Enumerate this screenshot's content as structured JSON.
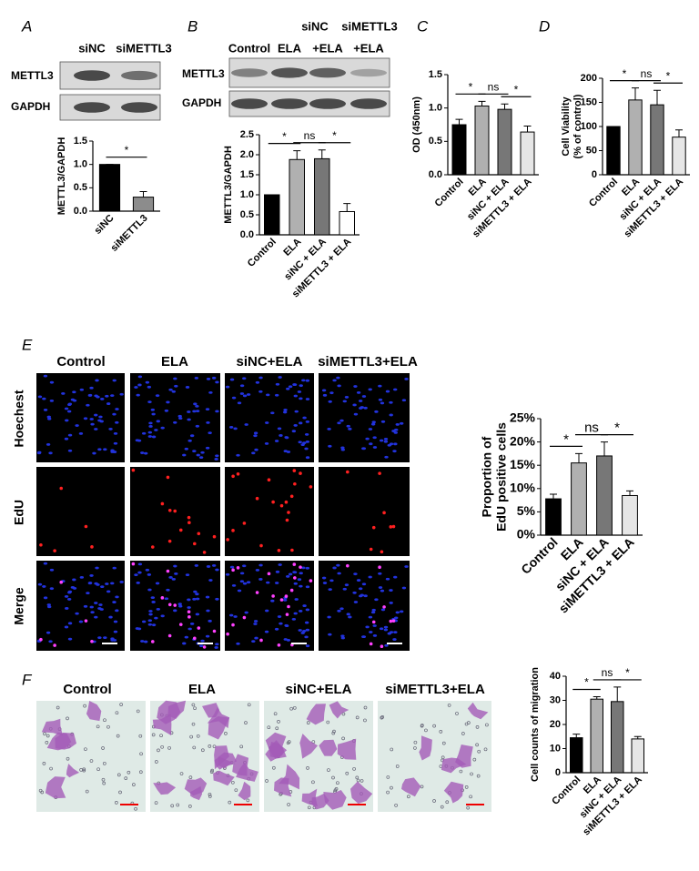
{
  "figure": {
    "panel_labels": [
      "A",
      "B",
      "C",
      "D",
      "E",
      "F"
    ],
    "blot_a": {
      "lanes": [
        "siNC",
        "siMETTL3"
      ],
      "rows": [
        "METTL3",
        "GAPDH"
      ]
    },
    "blot_b": {
      "header": [
        "siNC",
        "siMETTL3"
      ],
      "lanes": [
        "Control",
        "ELA",
        "+ELA",
        "+ELA"
      ],
      "rows": [
        "METTL3",
        "GAPDH"
      ]
    },
    "edu": {
      "columns": [
        "Control",
        "ELA",
        "siNC+ELA",
        "siMETTL3+ELA"
      ],
      "rows": [
        "Hoechest",
        "EdU",
        "Merge"
      ]
    },
    "migration": {
      "columns": [
        "Control",
        "ELA",
        "siNC+ELA",
        "siMETTL3+ELA"
      ]
    }
  },
  "chart_data": [
    {
      "type": "bar",
      "ylabel": [
        "METTL3/GAPDH"
      ],
      "categories": [
        "siNC",
        "siMETTL3"
      ],
      "values": [
        1.0,
        0.3
      ],
      "errors": [
        0,
        0.12
      ],
      "colors": [
        "#000000",
        "#8c8c8c"
      ],
      "ylim": [
        0,
        1.5
      ],
      "yticks": [
        {
          "value": 0,
          "label": "0.0"
        },
        {
          "value": 0.5,
          "label": "0.5"
        },
        {
          "value": 1,
          "label": "1.0"
        },
        {
          "value": 1.5,
          "label": "1.5"
        }
      ],
      "annotations": [
        "*"
      ]
    },
    {
      "type": "bar",
      "ylabel": [
        "METTL3/GAPDH"
      ],
      "categories": [
        "Control",
        "ELA",
        "siNC + ELA",
        "siMETTL3 + ELA"
      ],
      "values": [
        1.0,
        1.88,
        1.9,
        0.58
      ],
      "errors": [
        0,
        0.22,
        0.22,
        0.2
      ],
      "colors": [
        "#000000",
        "#b0b0b0",
        "#777777",
        "#ffffff"
      ],
      "ylim": [
        0,
        2.5
      ],
      "yticks": [
        {
          "value": 0,
          "label": "0.0"
        },
        {
          "value": 0.5,
          "label": "0.5"
        },
        {
          "value": 1,
          "label": "1.0"
        },
        {
          "value": 1.5,
          "label": "1.5"
        },
        {
          "value": 2,
          "label": "2.0"
        },
        {
          "value": 2.5,
          "label": "2.5"
        }
      ],
      "annotations": [
        "*",
        "ns",
        "*"
      ]
    },
    {
      "type": "bar",
      "ylabel": [
        "OD (450nm)"
      ],
      "categories": [
        "Control",
        "ELA",
        "siNC + ELA",
        "siMETTL3 + ELA"
      ],
      "values": [
        0.75,
        1.03,
        0.98,
        0.64
      ],
      "errors": [
        0.08,
        0.07,
        0.08,
        0.09
      ],
      "colors": [
        "#000000",
        "#b0b0b0",
        "#777777",
        "#e6e6e6"
      ],
      "ylim": [
        0,
        1.5
      ],
      "yticks": [
        {
          "value": 0,
          "label": "0.0"
        },
        {
          "value": 0.5,
          "label": "0.5"
        },
        {
          "value": 1,
          "label": "1.0"
        },
        {
          "value": 1.5,
          "label": "1.5"
        }
      ],
      "annotations": [
        "*",
        "ns",
        "*"
      ]
    },
    {
      "type": "bar",
      "ylabel": [
        "Cell Viability",
        "(% of control)"
      ],
      "categories": [
        "Control",
        "ELA",
        "siNC + ELA",
        "siMETTL3 + ELA"
      ],
      "values": [
        100,
        155,
        145,
        78
      ],
      "errors": [
        0,
        25,
        30,
        15
      ],
      "colors": [
        "#000000",
        "#b0b0b0",
        "#777777",
        "#e6e6e6"
      ],
      "ylim": [
        0,
        200
      ],
      "yticks": [
        0,
        50,
        100,
        150,
        200
      ],
      "annotations": [
        "*",
        "ns",
        "*"
      ]
    },
    {
      "type": "bar",
      "ylabel": [
        "Proportion of",
        "EdU positive cells"
      ],
      "categories": [
        "Control",
        "ELA",
        "siNC + ELA",
        "siMETTL3 + ELA"
      ],
      "values": [
        7.8,
        15.5,
        17,
        8.5
      ],
      "errors": [
        1,
        2,
        3,
        1
      ],
      "colors": [
        "#000000",
        "#b0b0b0",
        "#777777",
        "#e6e6e6"
      ],
      "ylim": [
        0,
        25
      ],
      "yticks": [
        {
          "value": 0,
          "label": "0%"
        },
        {
          "value": 5,
          "label": "5%"
        },
        {
          "value": 10,
          "label": "10%"
        },
        {
          "value": 15,
          "label": "15%"
        },
        {
          "value": 20,
          "label": "20%"
        },
        {
          "value": 25,
          "label": "25%"
        }
      ],
      "annotations": [
        "*",
        "ns",
        "*"
      ]
    },
    {
      "type": "bar",
      "ylabel": [
        "Cell counts of migration"
      ],
      "categories": [
        "Control",
        "ELA",
        "siNC + ELA",
        "siMETTL3 + ELA"
      ],
      "values": [
        14.5,
        30.5,
        29.5,
        14
      ],
      "errors": [
        1.5,
        1,
        6,
        1
      ],
      "colors": [
        "#000000",
        "#b0b0b0",
        "#777777",
        "#e6e6e6"
      ],
      "ylim": [
        0,
        40
      ],
      "yticks": [
        0,
        10,
        20,
        30,
        40
      ],
      "annotations": [
        "*",
        "ns",
        "*"
      ]
    }
  ]
}
